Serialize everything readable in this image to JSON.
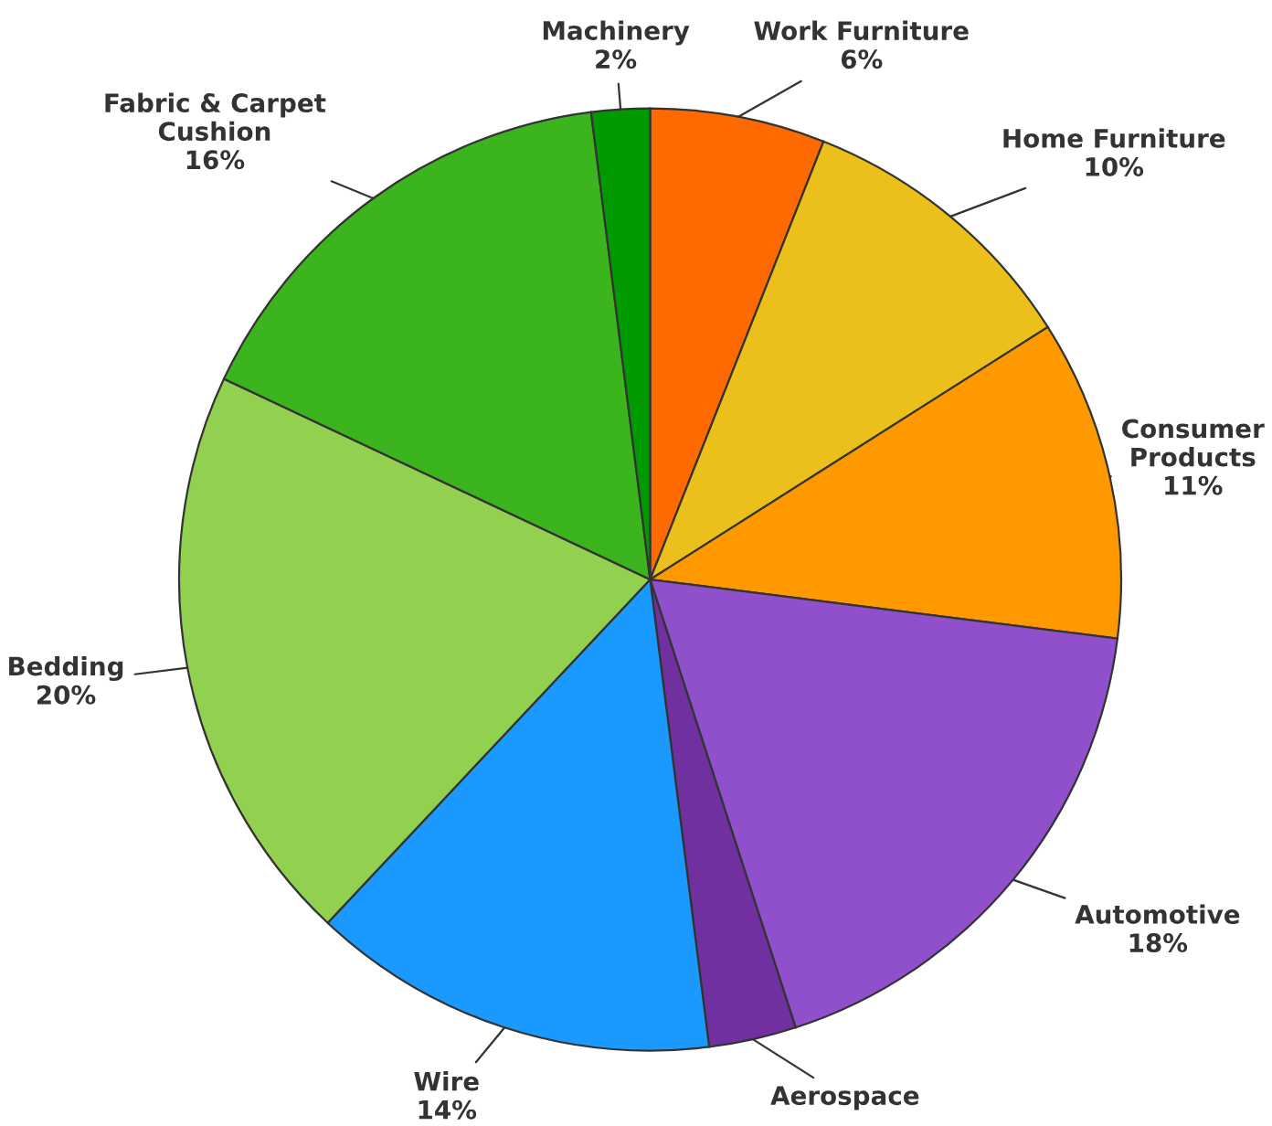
{
  "chart_data": {
    "type": "pie",
    "categories": [
      "Work Furniture",
      "Home Furniture",
      "Consumer\nProducts",
      "Automotive",
      "Aerospace",
      "Wire",
      "Bedding",
      "Fabric & Carpet\nCushion",
      "Machinery"
    ],
    "values": [
      6,
      10,
      11,
      18,
      3,
      14,
      20,
      16,
      2
    ],
    "value_labels": [
      "6%",
      "10%",
      "11%",
      "18%",
      null,
      "14%",
      "20%",
      "16%",
      "2%"
    ],
    "colors": [
      "#ff6a00",
      "#ebc01a",
      "#ff9900",
      "#9050cc",
      "#7030a0",
      "#1a9aff",
      "#92d050",
      "#3cb41e",
      "#009a00"
    ]
  }
}
